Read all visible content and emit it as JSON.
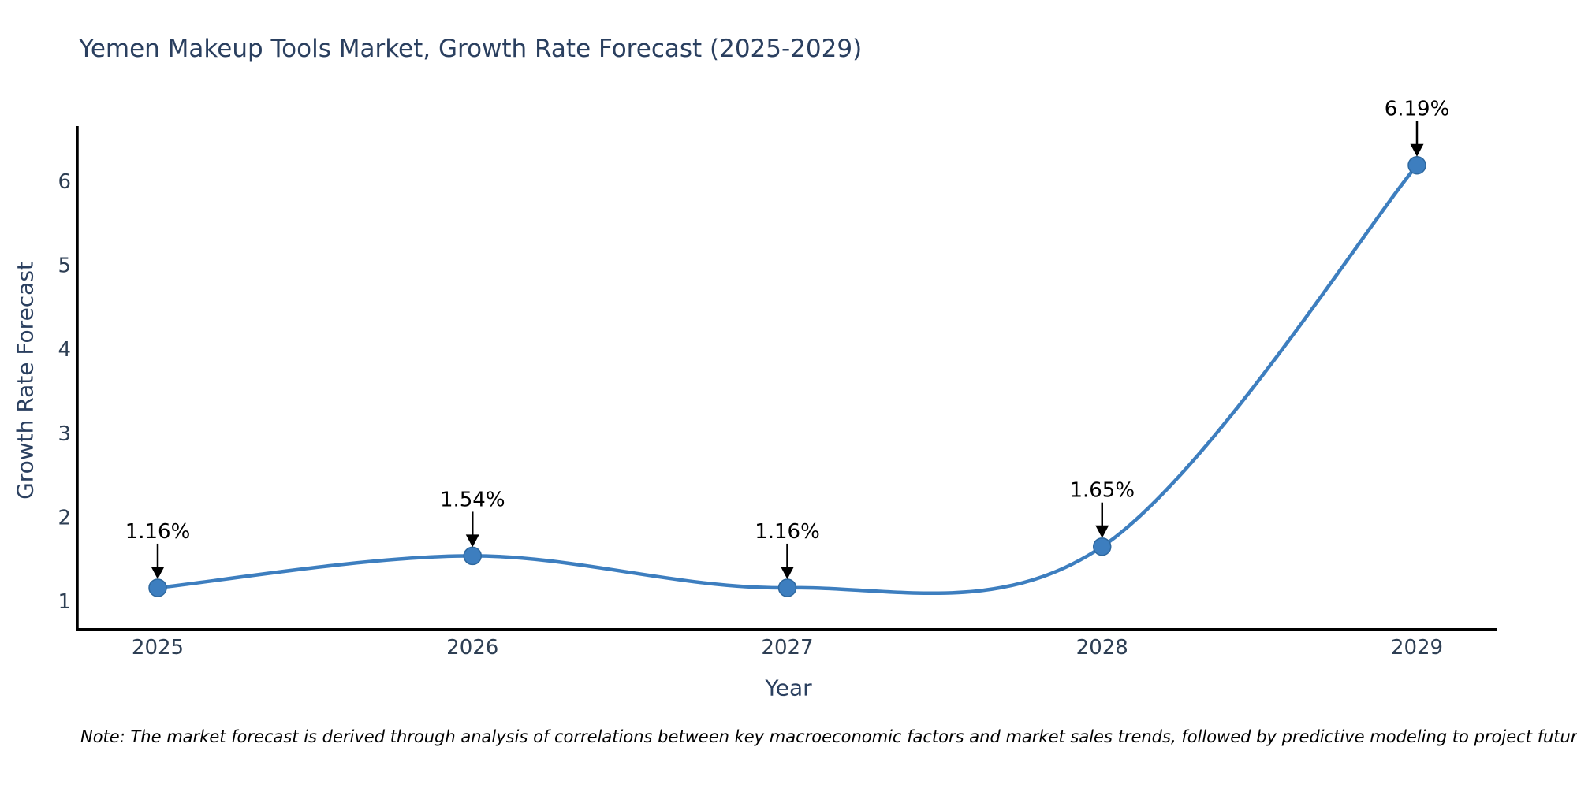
{
  "chart_data": {
    "type": "line",
    "title": "Yemen Makeup Tools Market, Growth Rate Forecast (2025-2029)",
    "xlabel": "Year",
    "ylabel": "Growth Rate Forecast",
    "x": [
      2025,
      2026,
      2027,
      2028,
      2029
    ],
    "y": [
      1.16,
      1.54,
      1.16,
      1.65,
      6.19
    ],
    "point_labels": [
      "1.16%",
      "1.54%",
      "1.16%",
      "1.65%",
      "6.19%"
    ],
    "x_tick_labels": [
      "2025",
      "2026",
      "2027",
      "2028",
      "2029"
    ],
    "y_tick_values": [
      1,
      2,
      3,
      4,
      5,
      6
    ],
    "y_tick_labels": [
      "1",
      "2",
      "3",
      "4",
      "5",
      "6"
    ],
    "ylim": [
      0.67,
      6.66
    ],
    "xlim": [
      2024.74,
      2029.25
    ],
    "line_shape": "spline",
    "grid": false,
    "legend_position": "none",
    "colors": {
      "line": "#3d7ebf",
      "marker": "#3d7ebf",
      "marker_edge": "#2e689f",
      "axis": "#000000",
      "title_text": "#2a3f5f",
      "tick_text": "#2e3f54",
      "annotation": "#000000",
      "background": "#ffffff"
    }
  },
  "note": {
    "text": "Note: The market forecast is derived through analysis of correlations between key macroeconomic factors and market sales trends, followed by predictive modeling to project future sales."
  }
}
